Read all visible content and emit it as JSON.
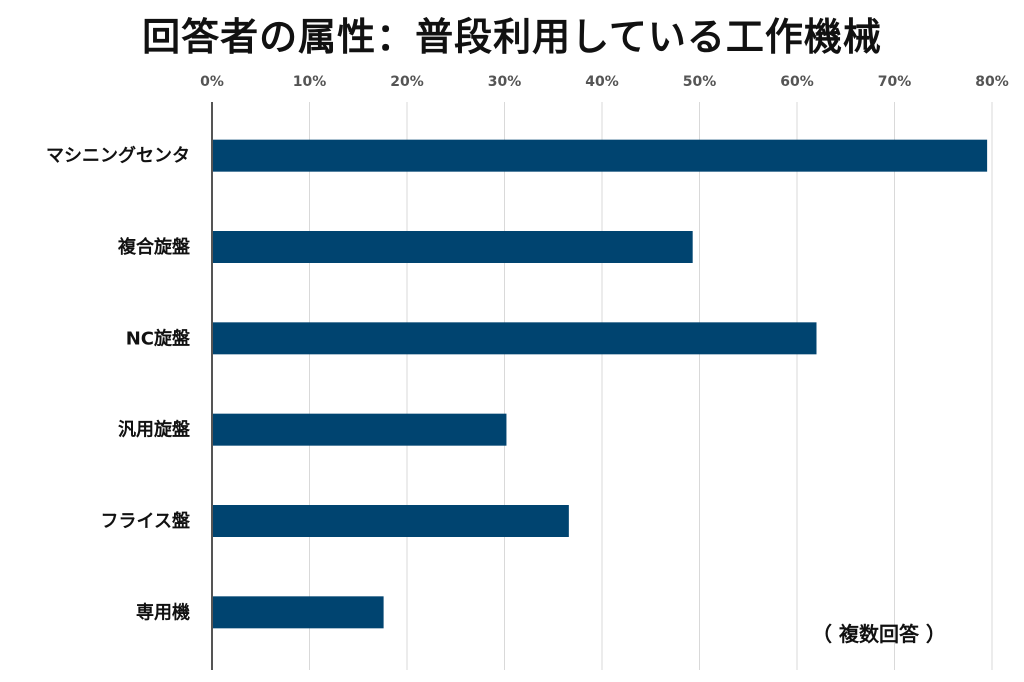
{
  "chart_data": {
    "type": "bar",
    "orientation": "horizontal",
    "title": "回答者の属性：普段利用している工作機械",
    "note": "（ 複数回答 ）",
    "categories": [
      "マシニングセンタ",
      "複合旋盤",
      "NC旋盤",
      "汎用旋盤",
      "フライス盤",
      "専用機"
    ],
    "values": [
      0.795,
      0.493,
      0.62,
      0.302,
      0.366,
      0.176
    ],
    "xlim": [
      0,
      0.8
    ],
    "x_ticks": [
      "0%",
      "10%",
      "20%",
      "30%",
      "40%",
      "50%",
      "60%",
      "70%",
      "80%"
    ],
    "grid": true,
    "color": "#004470"
  }
}
